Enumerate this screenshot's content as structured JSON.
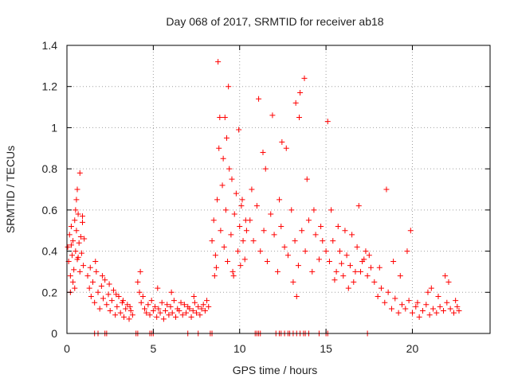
{
  "chart_data": {
    "type": "scatter",
    "title": "Day 068 of 2017, SRMTID for receiver ab18",
    "xlabel": "GPS time / hours",
    "ylabel": "SRMTID / TECUs",
    "xlim": [
      0,
      24.5
    ],
    "ylim": [
      0,
      1.4
    ],
    "xticks": [
      0,
      5,
      10,
      15,
      20
    ],
    "yticks": [
      0,
      0.2,
      0.4,
      0.6,
      0.8,
      1,
      1.2,
      1.4
    ],
    "xtick_labels": [
      "0",
      "5",
      "10",
      "15",
      "20"
    ],
    "ytick_labels": [
      "0",
      "0.2",
      "0.4",
      "0.6",
      "0.8",
      "1",
      "1.2",
      "1.4"
    ],
    "grid": true,
    "marker": "+",
    "color": "#ff0000",
    "series": [
      {
        "name": "SRMTID",
        "x": [
          0.05,
          0.1,
          0.15,
          0.2,
          0.25,
          0.3,
          0.35,
          0.4,
          0.45,
          0.5,
          0.55,
          0.6,
          0.65,
          0.7,
          0.75,
          0.8,
          0.85,
          0.9,
          0.95,
          1.0,
          0.2,
          0.35,
          0.5,
          0.6,
          0.75,
          0.9,
          0.45,
          0.55,
          0.65,
          0.25,
          1.2,
          1.3,
          1.4,
          1.5,
          1.6,
          1.7,
          1.8,
          1.9,
          2.0,
          2.1,
          2.2,
          2.3,
          2.4,
          2.5,
          2.6,
          2.7,
          2.8,
          2.9,
          3.0,
          3.1,
          3.2,
          3.3,
          3.4,
          3.5,
          3.6,
          3.7,
          3.8,
          1.35,
          1.65,
          2.05,
          2.45,
          2.85,
          3.25,
          3.65,
          4.1,
          4.2,
          4.3,
          4.4,
          4.5,
          4.6,
          4.7,
          4.8,
          4.9,
          5.0,
          5.1,
          5.2,
          5.3,
          5.4,
          5.5,
          5.6,
          5.7,
          5.8,
          5.9,
          6.0,
          6.1,
          6.2,
          6.3,
          6.4,
          6.5,
          6.6,
          6.7,
          6.8,
          6.9,
          7.0,
          7.1,
          7.2,
          7.3,
          7.4,
          7.5,
          7.6,
          7.7,
          7.8,
          7.9,
          8.0,
          8.1,
          8.2,
          4.25,
          5.25,
          6.05,
          7.35,
          8.4,
          8.5,
          8.6,
          8.7,
          8.8,
          8.9,
          9.0,
          9.1,
          9.2,
          9.3,
          9.4,
          9.5,
          9.6,
          9.7,
          9.8,
          9.9,
          10.0,
          10.1,
          10.2,
          10.3,
          10.4,
          8.75,
          8.85,
          9.05,
          9.35,
          9.55,
          9.95,
          10.15,
          8.65,
          9.25,
          9.65,
          10.05,
          10.35,
          8.55,
          9.15,
          10.6,
          10.8,
          11.0,
          11.2,
          11.4,
          11.6,
          11.8,
          12.0,
          12.2,
          12.4,
          12.6,
          12.8,
          13.0,
          13.2,
          13.4,
          13.6,
          13.8,
          14.0,
          14.2,
          14.4,
          14.6,
          14.8,
          15.0,
          10.7,
          11.1,
          11.5,
          11.9,
          12.3,
          12.7,
          13.1,
          13.3,
          13.5,
          13.9,
          14.3,
          14.7,
          15.1,
          13.25,
          13.45,
          13.75,
          12.45,
          11.35,
          15.2,
          15.4,
          15.6,
          15.8,
          16.0,
          16.2,
          16.4,
          16.6,
          16.8,
          17.0,
          17.2,
          17.4,
          17.6,
          15.3,
          15.7,
          16.1,
          16.5,
          16.9,
          17.3,
          15.5,
          15.9,
          16.3,
          16.7,
          17.1,
          17.5,
          17.8,
          18.0,
          18.2,
          18.4,
          18.6,
          18.8,
          19.0,
          19.2,
          19.4,
          19.6,
          19.8,
          20.0,
          20.2,
          20.4,
          20.6,
          20.8,
          21.0,
          21.2,
          21.4,
          21.6,
          21.8,
          22.0,
          22.2,
          22.4,
          22.6,
          22.7,
          18.1,
          18.5,
          19.3,
          19.7,
          20.3,
          20.9,
          21.5,
          22.1,
          22.5,
          18.9,
          19.9,
          21.1,
          21.9,
          1.6,
          1.8,
          2.2,
          2.3,
          4.0,
          4.1,
          4.8,
          4.9,
          5.0,
          7.0,
          7.6,
          8.3,
          8.4,
          10.9,
          11.0,
          11.1,
          11.2,
          12.1,
          12.3,
          12.4,
          12.6,
          12.8,
          12.9,
          13.1,
          13.3,
          13.5,
          13.7,
          13.8,
          14.0,
          14.6,
          15.0,
          15.1,
          17.4
        ],
        "y": [
          0.42,
          0.35,
          0.48,
          0.28,
          0.52,
          0.38,
          0.45,
          0.31,
          0.55,
          0.4,
          0.5,
          0.36,
          0.58,
          0.44,
          0.3,
          0.47,
          0.39,
          0.54,
          0.33,
          0.46,
          0.2,
          0.25,
          0.6,
          0.7,
          0.78,
          0.57,
          0.22,
          0.65,
          0.37,
          0.43,
          0.28,
          0.22,
          0.18,
          0.25,
          0.15,
          0.3,
          0.2,
          0.12,
          0.23,
          0.17,
          0.26,
          0.14,
          0.19,
          0.11,
          0.16,
          0.21,
          0.09,
          0.13,
          0.18,
          0.1,
          0.15,
          0.08,
          0.12,
          0.14,
          0.07,
          0.11,
          0.09,
          0.32,
          0.35,
          0.28,
          0.24,
          0.19,
          0.16,
          0.13,
          0.25,
          0.2,
          0.15,
          0.18,
          0.12,
          0.1,
          0.14,
          0.09,
          0.16,
          0.11,
          0.13,
          0.08,
          0.12,
          0.1,
          0.15,
          0.07,
          0.11,
          0.14,
          0.09,
          0.13,
          0.1,
          0.16,
          0.08,
          0.12,
          0.11,
          0.15,
          0.09,
          0.14,
          0.1,
          0.13,
          0.12,
          0.08,
          0.11,
          0.15,
          0.1,
          0.13,
          0.09,
          0.12,
          0.14,
          0.11,
          0.16,
          0.13,
          0.3,
          0.22,
          0.2,
          0.18,
          0.45,
          0.55,
          0.38,
          0.65,
          0.9,
          0.5,
          0.72,
          0.42,
          0.6,
          0.35,
          0.8,
          0.48,
          0.3,
          0.58,
          0.68,
          0.4,
          0.52,
          0.62,
          0.45,
          0.36,
          0.5,
          1.32,
          1.05,
          0.85,
          1.2,
          0.75,
          0.99,
          0.65,
          0.32,
          0.95,
          0.28,
          0.33,
          0.55,
          0.28,
          1.05,
          0.55,
          0.45,
          0.62,
          0.4,
          0.5,
          0.35,
          0.58,
          0.48,
          0.3,
          0.52,
          0.42,
          0.38,
          0.6,
          0.45,
          0.33,
          0.5,
          0.4,
          0.55,
          0.3,
          0.48,
          0.36,
          0.45,
          0.4,
          0.7,
          1.14,
          0.8,
          1.06,
          0.65,
          0.9,
          0.25,
          0.18,
          1.17,
          0.75,
          0.6,
          0.52,
          1.03,
          1.12,
          1.05,
          1.24,
          0.93,
          0.88,
          0.35,
          0.45,
          0.3,
          0.4,
          0.28,
          0.38,
          0.33,
          0.25,
          0.42,
          0.3,
          0.36,
          0.28,
          0.32,
          0.6,
          0.52,
          0.5,
          0.48,
          0.62,
          0.4,
          0.26,
          0.34,
          0.22,
          0.3,
          0.35,
          0.38,
          0.25,
          0.18,
          0.22,
          0.15,
          0.2,
          0.12,
          0.17,
          0.1,
          0.14,
          0.12,
          0.16,
          0.1,
          0.13,
          0.08,
          0.11,
          0.14,
          0.09,
          0.12,
          0.1,
          0.13,
          0.11,
          0.15,
          0.12,
          0.1,
          0.13,
          0.11,
          0.32,
          0.7,
          0.28,
          0.4,
          0.15,
          0.2,
          0.18,
          0.25,
          0.16,
          0.35,
          0.5,
          0.22,
          0.28,
          0,
          0,
          0,
          0,
          0,
          0,
          0,
          0,
          0,
          0,
          0,
          0,
          0,
          0,
          0,
          0,
          0,
          0,
          0,
          0,
          0,
          0,
          0,
          0,
          0,
          0,
          0,
          0,
          0,
          0,
          0,
          0,
          0
        ]
      }
    ]
  }
}
